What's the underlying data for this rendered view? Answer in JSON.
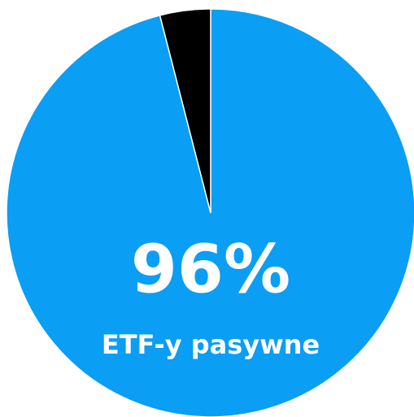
{
  "chart_data": {
    "type": "pie",
    "categories": [
      "ETF-y pasywne",
      null
    ],
    "values": [
      96,
      4
    ],
    "value_labels": [
      "96%",
      null
    ],
    "colors": [
      "#0a9ef5",
      "#000000"
    ]
  }
}
